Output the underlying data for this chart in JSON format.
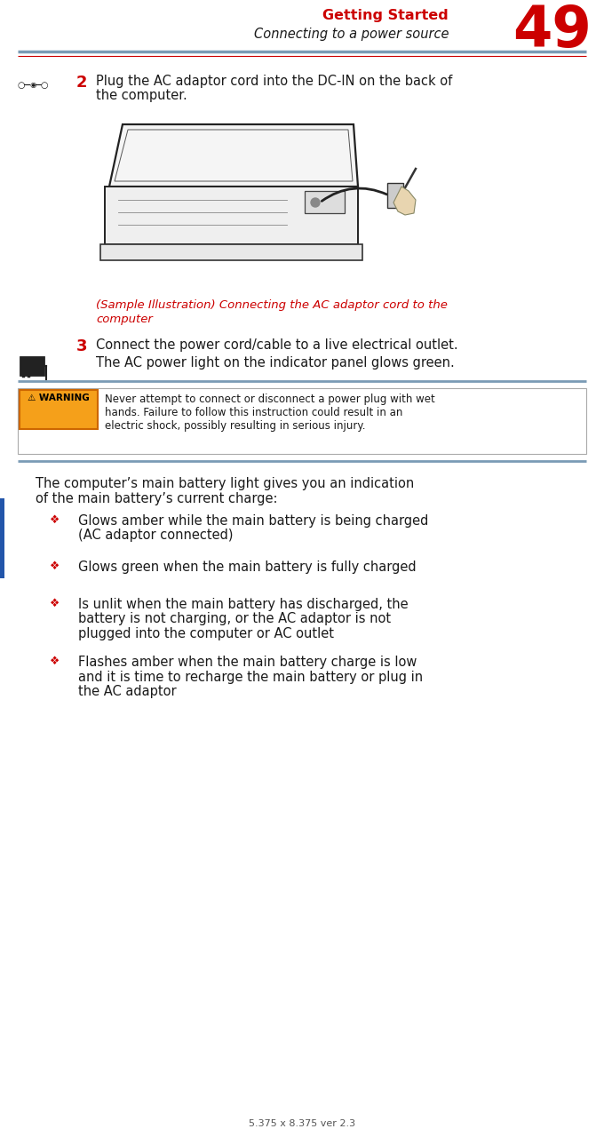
{
  "bg_color": "#ffffff",
  "header_red": "#cc0000",
  "header_title": "Getting Started",
  "header_subtitle": "Connecting to a power source",
  "header_page_num": "49",
  "rule_color": "#7a9bb5",
  "left_bar_color": "#2255aa",
  "step2_icon": "○─◉─○",
  "step2_num": "2",
  "step2_text_line1": "Plug the AC adaptor cord into the DC-IN on the back of",
  "step2_text_line2": "the computer.",
  "caption_line1": "(Sample Illustration) Connecting the AC adaptor cord to the",
  "caption_line2": "computer",
  "caption_color": "#cc0000",
  "step3_num": "3",
  "step3_text": "Connect the power cord/cable to a live electrical outlet.",
  "step3_subtext": "The AC power light on the indicator panel glows green.",
  "warning_bg": "#f5a01a",
  "warning_label": "⚠ WARNING",
  "warning_line1": "Never attempt to connect or disconnect a power plug with wet",
  "warning_line2": "hands. Failure to follow this instruction could result in an",
  "warning_line3": "electric shock, possibly resulting in serious injury.",
  "body_line1": "The computer’s main battery light gives you an indication",
  "body_line2": "of the main battery’s current charge:",
  "bullet_color": "#cc0000",
  "bullet_char": "❖",
  "bullet1_line1": "Glows amber while the main battery is being charged",
  "bullet1_line2": "(AC adaptor connected)",
  "bullet2": "Glows green when the main battery is fully charged",
  "bullet3_line1": "Is unlit when the main battery has discharged, the",
  "bullet3_line2": "battery is not charging, or the AC adaptor is not",
  "bullet3_line3": "plugged into the computer or AC outlet",
  "bullet4_line1": "Flashes amber when the main battery charge is low",
  "bullet4_line2": "and it is time to recharge the main battery or plug in",
  "bullet4_line3": "the AC adaptor",
  "footer_text": "5.375 x 8.375 ver 2.3",
  "text_color": "#1a1a1a"
}
